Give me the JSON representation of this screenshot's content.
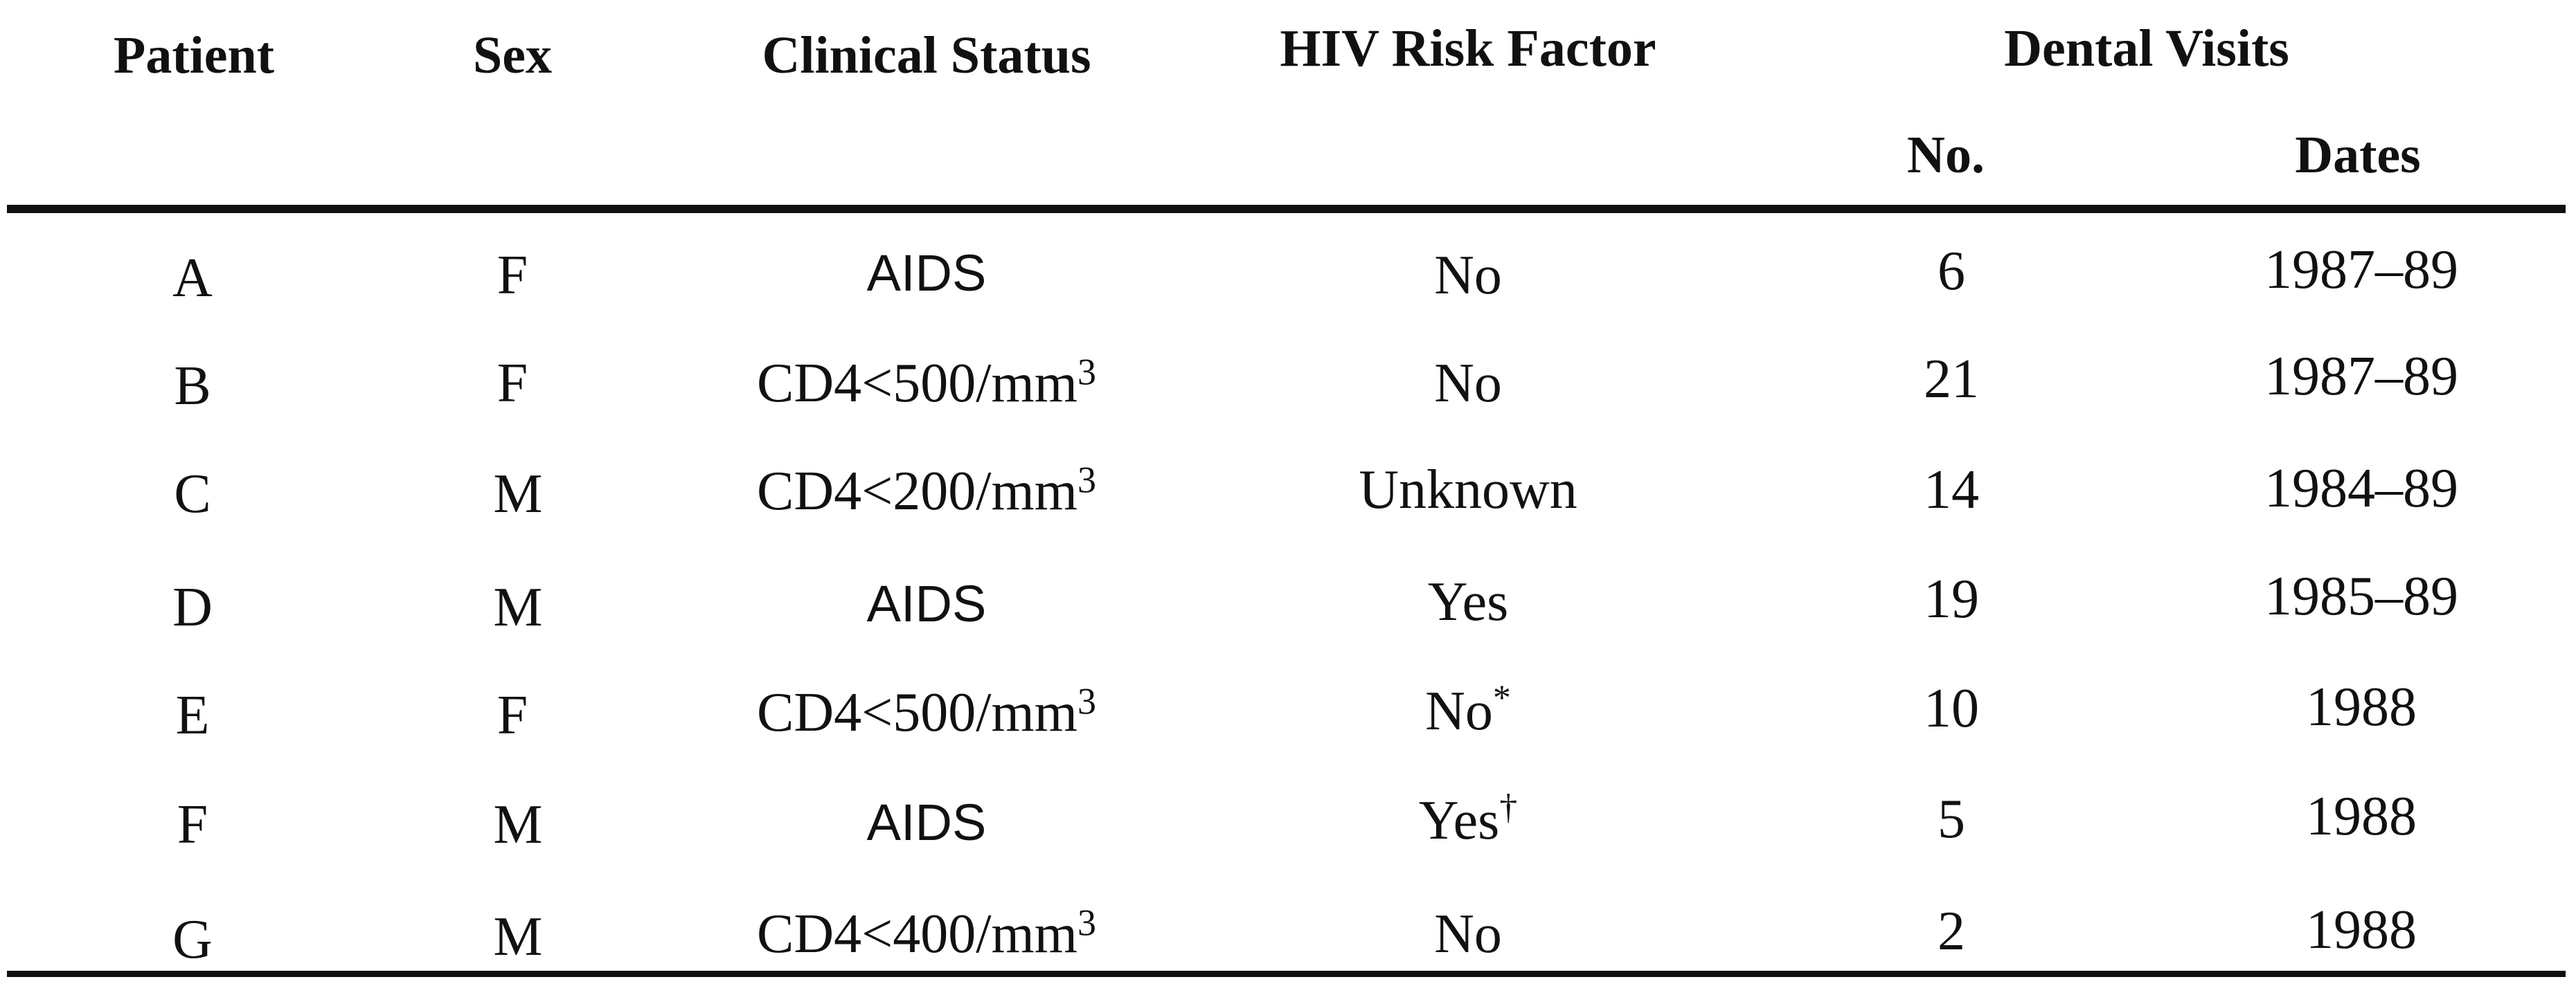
{
  "table": {
    "headers": {
      "patient": "Patient",
      "sex": "Sex",
      "clinical_status": "Clinical Status",
      "hiv_risk_factor": "HIV Risk Factor",
      "dental_visits": "Dental Visits",
      "no": "No.",
      "dates": "Dates"
    },
    "rows": [
      {
        "patient": "A",
        "sex": "F",
        "clinical_status": "AIDS",
        "hiv_risk_factor": "No",
        "risk_mark": "",
        "no": "6",
        "dates": "1987–89"
      },
      {
        "patient": "B",
        "sex": "F",
        "clinical_status": "CD4<500/mm",
        "exp": "3",
        "hiv_risk_factor": "No",
        "risk_mark": "",
        "no": "21",
        "dates": "1987–89"
      },
      {
        "patient": "C",
        "sex": "M",
        "clinical_status": "CD4<200/mm",
        "exp": "3",
        "hiv_risk_factor": "Unknown",
        "risk_mark": "",
        "no": "14",
        "dates": "1984–89"
      },
      {
        "patient": "D",
        "sex": "M",
        "clinical_status": "AIDS",
        "hiv_risk_factor": "Yes",
        "risk_mark": "",
        "no": "19",
        "dates": "1985–89"
      },
      {
        "patient": "E",
        "sex": "F",
        "clinical_status": "CD4<500/mm",
        "exp": "3",
        "hiv_risk_factor": "No",
        "risk_mark": "*",
        "no": "10",
        "dates": "1988"
      },
      {
        "patient": "F",
        "sex": "M",
        "clinical_status": "AIDS",
        "hiv_risk_factor": "Yes",
        "risk_mark": "†",
        "no": "5",
        "dates": "1988"
      },
      {
        "patient": "G",
        "sex": "M",
        "clinical_status": "CD4<400/mm",
        "exp": "3",
        "hiv_risk_factor": "No",
        "risk_mark": "",
        "no": "2",
        "dates": "1988"
      }
    ]
  }
}
